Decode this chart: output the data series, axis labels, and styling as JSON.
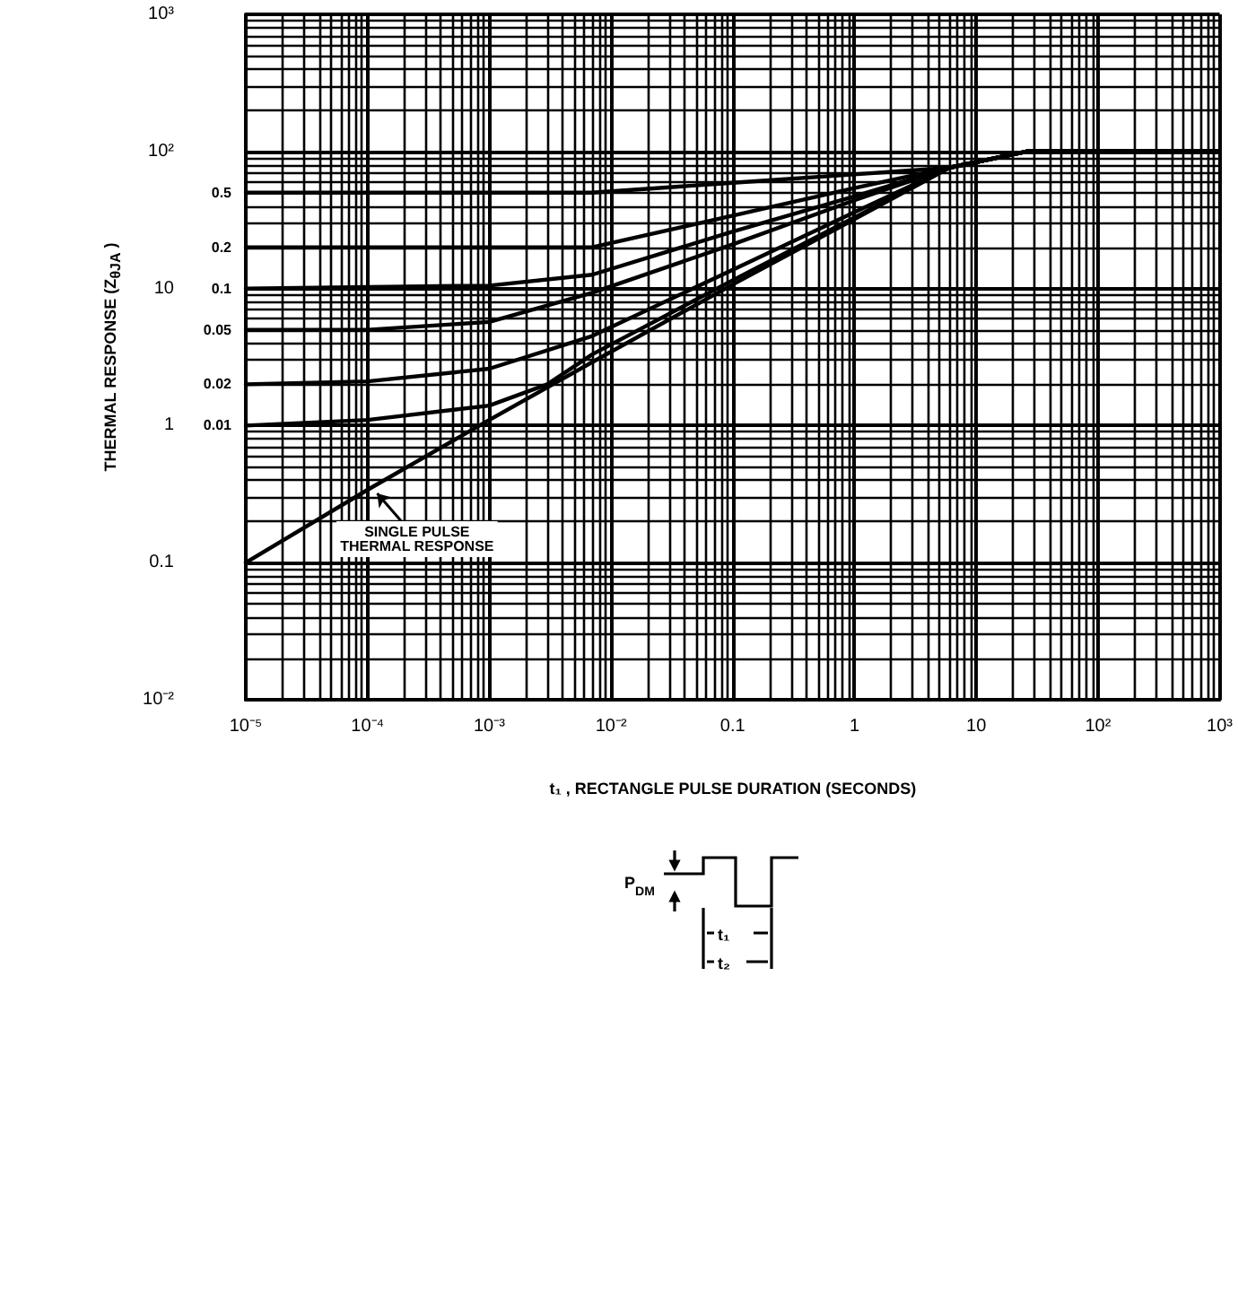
{
  "chart_data": {
    "type": "line",
    "xlabel": "t₁ , RECTANGLE PULSE DURATION (SECONDS)",
    "ylabel": "THERMAL RESPONSE (Z$_{θJA}$ )",
    "log": "xy",
    "grid": true,
    "legend": false,
    "marker": "none",
    "line_style": "solid",
    "xlim": [
      1e-05,
      1000
    ],
    "ylim": [
      0.01,
      1000
    ],
    "xticks": [
      {
        "value": 1e-05,
        "label": "10⁻⁵"
      },
      {
        "value": 0.0001,
        "label": "10⁻⁴"
      },
      {
        "value": 0.001,
        "label": "10⁻³"
      },
      {
        "value": 0.01,
        "label": "10⁻²"
      },
      0.1,
      1,
      10,
      {
        "value": 100,
        "label": "10²"
      },
      {
        "value": 1000,
        "label": "10³"
      }
    ],
    "yticks": [
      {
        "value": 0.01,
        "label": "10⁻²"
      },
      0.1,
      1,
      10,
      {
        "value": 100,
        "label": "10²"
      },
      {
        "value": 1000,
        "label": "10³"
      }
    ],
    "series": [
      {
        "name": "0.5",
        "color": "#000000",
        "x": [
          1e-05,
          0.001,
          0.007,
          0.1,
          1,
          6,
          26,
          1000
        ],
        "values": [
          50,
          50,
          50,
          59,
          68,
          76,
          100,
          100
        ]
      },
      {
        "name": "0.2",
        "color": "#000000",
        "x": [
          1e-05,
          0.001,
          0.007,
          0.1,
          1,
          6,
          26,
          1000
        ],
        "values": [
          20,
          20,
          20,
          34,
          54,
          76,
          100,
          100
        ]
      },
      {
        "name": "0.1",
        "color": "#000000",
        "x": [
          1e-05,
          0.001,
          0.007,
          0.1,
          1,
          6,
          26,
          1000
        ],
        "values": [
          10,
          10.5,
          12.6,
          26,
          47,
          76,
          100,
          100
        ]
      },
      {
        "name": "0.05",
        "color": "#000000",
        "x": [
          1e-05,
          0.0001,
          0.001,
          0.007,
          0.1,
          1,
          6,
          26,
          1000
        ],
        "values": [
          5,
          5,
          5.7,
          9.3,
          21,
          44,
          76,
          100,
          100
        ]
      },
      {
        "name": "0.02",
        "color": "#000000",
        "x": [
          1e-05,
          0.0001,
          0.001,
          0.007,
          0.1,
          1,
          6,
          26,
          1000
        ],
        "values": [
          2,
          2.1,
          2.6,
          4.5,
          13.7,
          36,
          76,
          100,
          100
        ]
      },
      {
        "name": "0.01",
        "color": "#000000",
        "x": [
          1e-05,
          0.0001,
          0.001,
          0.003,
          0.007,
          0.1,
          1,
          6,
          26,
          1000
        ],
        "values": [
          1,
          1.1,
          1.4,
          2,
          3.3,
          11.5,
          33,
          76,
          100,
          100
        ]
      },
      {
        "color": "#000000",
        "x": [
          1e-05,
          0.0001,
          0.001,
          0.007,
          0.1,
          1,
          6,
          26,
          1000
        ],
        "values": [
          0.1,
          0.34,
          1.1,
          2.9,
          10.7,
          32,
          76,
          100,
          100
        ]
      }
    ],
    "annotations": [
      {
        "text": "SINGLE PULSE\nTHERMAL RESPONSE",
        "x": 0.00012,
        "y": 0.32
      },
      "P$_{DM}$",
      "t₁",
      "t₂"
    ]
  }
}
